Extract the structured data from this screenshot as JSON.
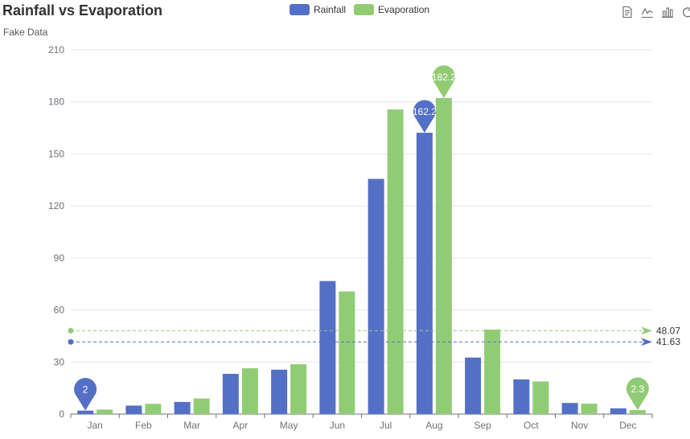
{
  "title": "Rainfall vs Evaporation",
  "subtitle": "Fake Data",
  "legend": [
    {
      "name": "Rainfall",
      "color": "#5470c6"
    },
    {
      "name": "Evaporation",
      "color": "#91cc75"
    }
  ],
  "toolbox": [
    "data-view-icon",
    "line-chart-icon",
    "bar-chart-icon",
    "restore-icon"
  ],
  "chart_data": {
    "type": "bar",
    "title": "Rainfall vs Evaporation",
    "subtitle": "Fake Data",
    "categories": [
      "Jan",
      "Feb",
      "Mar",
      "Apr",
      "May",
      "Jun",
      "Jul",
      "Aug",
      "Sep",
      "Oct",
      "Nov",
      "Dec"
    ],
    "ylim": [
      0,
      210
    ],
    "yticks": [
      0,
      30,
      60,
      90,
      120,
      150,
      180,
      210
    ],
    "grid": true,
    "legend_position": "top-center",
    "series": [
      {
        "name": "Rainfall",
        "color": "#5470c6",
        "values": [
          2.0,
          4.9,
          7.0,
          23.2,
          25.6,
          76.7,
          135.6,
          162.2,
          32.6,
          20.0,
          6.4,
          3.3
        ],
        "mark_points": [
          {
            "label": "162.2",
            "value": 162.2,
            "index": 7
          },
          {
            "label": "2",
            "value": 2.0,
            "index": 0
          }
        ],
        "mark_line": {
          "label": "41.63",
          "value": 41.63
        }
      },
      {
        "name": "Evaporation",
        "color": "#91cc75",
        "values": [
          2.6,
          5.9,
          9.0,
          26.4,
          28.7,
          70.7,
          175.6,
          182.2,
          48.7,
          18.8,
          6.0,
          2.3
        ],
        "mark_points": [
          {
            "label": "182.2",
            "value": 182.2,
            "index": 7
          },
          {
            "label": "2.3",
            "value": 2.3,
            "index": 11
          }
        ],
        "mark_line": {
          "label": "48.07",
          "value": 48.07
        }
      }
    ]
  }
}
